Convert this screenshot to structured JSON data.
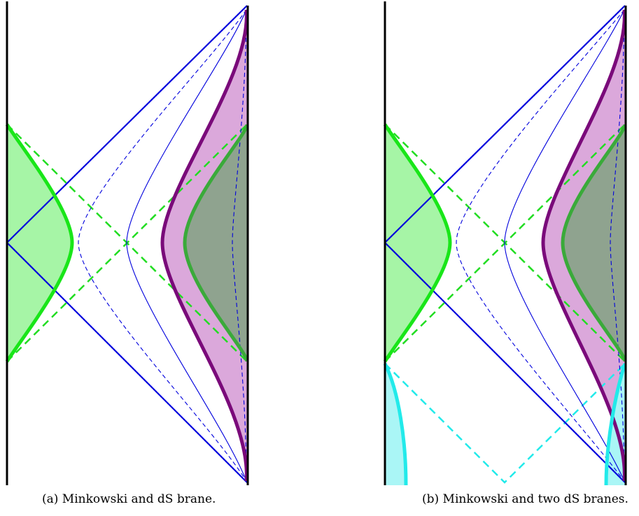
{
  "captions": {
    "a": "(a) Minkowski and dS brane.",
    "b": "(b) Minkowski and two dS branes."
  },
  "colors": {
    "boundary": "#000000",
    "light_cone": "#0000dd",
    "green_brane": "#19e619",
    "green_fill": "#a6f5a6",
    "green_horizon_dashed": "#22dd22",
    "dark_green_brane": "#3aaa3a",
    "dark_green_fill": "#8fa38f",
    "purple_brane": "#7a0a7a",
    "purple_fill": "#dba8db",
    "cyan_brane": "#22eaea",
    "cyan_fill": "#aaf6f6"
  }
}
